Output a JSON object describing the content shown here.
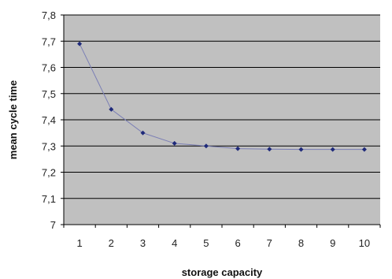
{
  "chart_data": {
    "type": "line",
    "title": "",
    "xlabel": "storage capacity",
    "ylabel": "mean cycle time",
    "x": [
      1,
      2,
      3,
      4,
      5,
      6,
      7,
      8,
      9,
      10
    ],
    "x_tick_labels": [
      "1",
      "2",
      "3",
      "4",
      "5",
      "6",
      "7",
      "8",
      "9",
      "10"
    ],
    "series": [
      {
        "values": [
          7.69,
          7.44,
          7.35,
          7.31,
          7.3,
          7.29,
          7.288,
          7.287,
          7.287,
          7.287
        ]
      }
    ],
    "ylim": [
      7.0,
      7.8
    ],
    "y_ticks": [
      7.0,
      7.1,
      7.2,
      7.3,
      7.4,
      7.5,
      7.6,
      7.7,
      7.8
    ],
    "y_tick_labels": [
      "7",
      "7,1",
      "7,2",
      "7,3",
      "7,4",
      "7,5",
      "7,6",
      "7,7",
      "7,8"
    ],
    "grid": true,
    "legend": "none",
    "colors": {
      "plot_background": "#c0c0c0",
      "gridline": "#000000",
      "series_line": "#7b7fb5",
      "marker": "#1f2a7a"
    }
  }
}
